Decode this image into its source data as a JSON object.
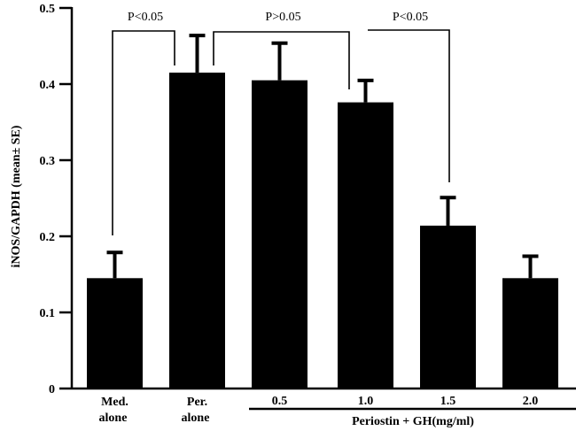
{
  "chart_data": {
    "type": "bar",
    "ylabel": "iNOS/GAPDH (mean± SE)",
    "ylim": [
      0,
      0.5
    ],
    "yticks": [
      "0",
      "0.1",
      "0.2",
      "0.3",
      "0.4",
      "0.5"
    ],
    "categories": [
      {
        "line1": "Med.",
        "line2": "alone"
      },
      {
        "line1": "Per.",
        "line2": "alone"
      },
      {
        "line1": "0.5",
        "line2": ""
      },
      {
        "line1": "1.0",
        "line2": ""
      },
      {
        "line1": "1.5",
        "line2": ""
      },
      {
        "line1": "2.0",
        "line2": ""
      }
    ],
    "values": [
      0.145,
      0.415,
      0.405,
      0.376,
      0.214,
      0.145
    ],
    "errors": [
      0.035,
      0.05,
      0.05,
      0.03,
      0.038,
      0.03
    ],
    "group_label": "Periostin + GH(mg/ml)",
    "comparisons": [
      {
        "from": 0,
        "to": 1,
        "label": "P<0.05"
      },
      {
        "from": 1,
        "to": 3,
        "label": "P>0.05"
      },
      {
        "from": 3,
        "to": 4,
        "label": "P<0.05"
      }
    ],
    "bar_color": "#000000",
    "grid": false
  }
}
